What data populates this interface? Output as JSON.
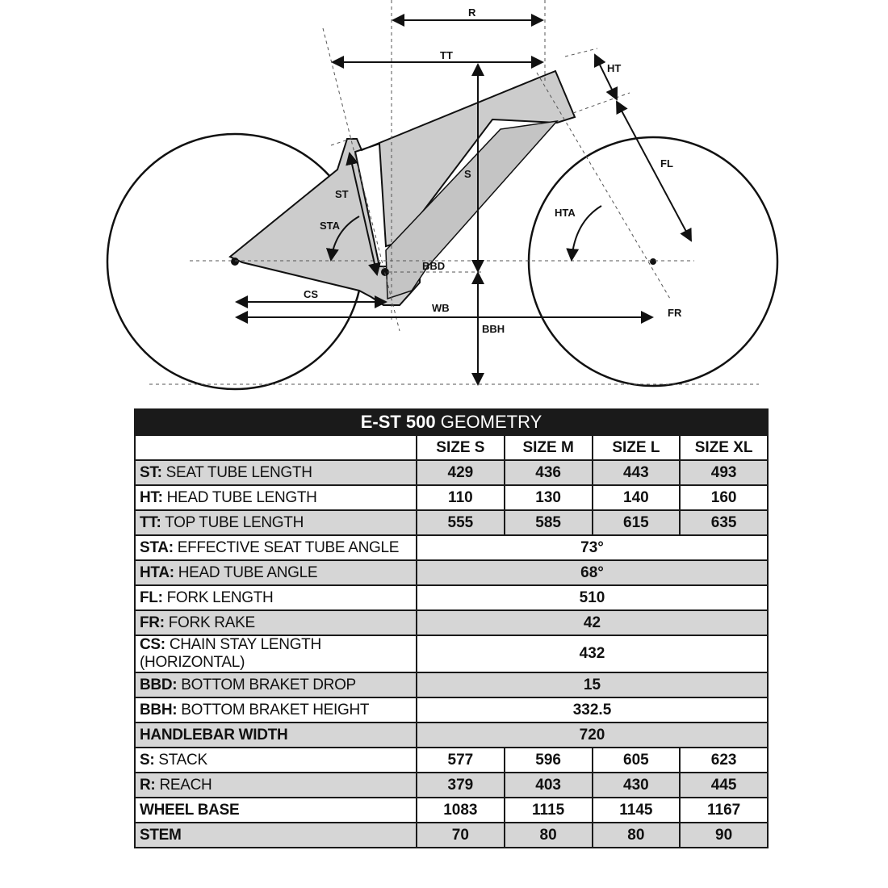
{
  "diagram": {
    "labels": {
      "R": "R",
      "TT": "TT",
      "HT": "HT",
      "S": "S",
      "FL": "FL",
      "ST": "ST",
      "STA": "STA",
      "HTA": "HTA",
      "BBD": "BBD",
      "CS": "CS",
      "WB": "WB",
      "BBH": "BBH",
      "FR": "FR"
    },
    "frame_color": "#cccccc"
  },
  "table": {
    "title_bold": "E-ST 500",
    "title_rest": "GEOMETRY",
    "sizes": [
      "SIZE S",
      "SIZE M",
      "SIZE L",
      "SIZE XL"
    ],
    "rows": [
      {
        "abbr": "ST:",
        "name": "SEAT TUBE LENGTH",
        "values": [
          "429",
          "436",
          "443",
          "493"
        ]
      },
      {
        "abbr": "HT:",
        "name": "HEAD TUBE LENGTH",
        "values": [
          "110",
          "130",
          "140",
          "160"
        ]
      },
      {
        "abbr": "TT:",
        "name": "TOP TUBE LENGTH",
        "values": [
          "555",
          "585",
          "615",
          "635"
        ]
      },
      {
        "abbr": "STA:",
        "name": "EFFECTIVE SEAT TUBE ANGLE",
        "value": "73°"
      },
      {
        "abbr": "HTA:",
        "name": "HEAD TUBE ANGLE",
        "value": "68°"
      },
      {
        "abbr": "FL:",
        "name": "FORK LENGTH",
        "value": "510"
      },
      {
        "abbr": "FR:",
        "name": "FORK RAKE",
        "value": "42"
      },
      {
        "abbr": "CS:",
        "name": "CHAIN STAY LENGTH (HORIZONTAL)",
        "value": "432"
      },
      {
        "abbr": "BBD:",
        "name": "BOTTOM BRAKET DROP",
        "value": "15"
      },
      {
        "abbr": "BBH:",
        "name": "BOTTOM BRAKET HEIGHT",
        "value": "332.5"
      },
      {
        "abbr": "HANDLEBAR WIDTH",
        "name": "",
        "value": "720"
      },
      {
        "abbr": "S:",
        "name": "STACK",
        "values": [
          "577",
          "596",
          "605",
          "623"
        ]
      },
      {
        "abbr": "R:",
        "name": "REACH",
        "values": [
          "379",
          "403",
          "430",
          "445"
        ]
      },
      {
        "abbr": "WHEEL BASE",
        "name": "",
        "values": [
          "1083",
          "1115",
          "1145",
          "1167"
        ]
      },
      {
        "abbr": "STEM",
        "name": "",
        "values": [
          "70",
          "80",
          "80",
          "90"
        ]
      }
    ]
  }
}
